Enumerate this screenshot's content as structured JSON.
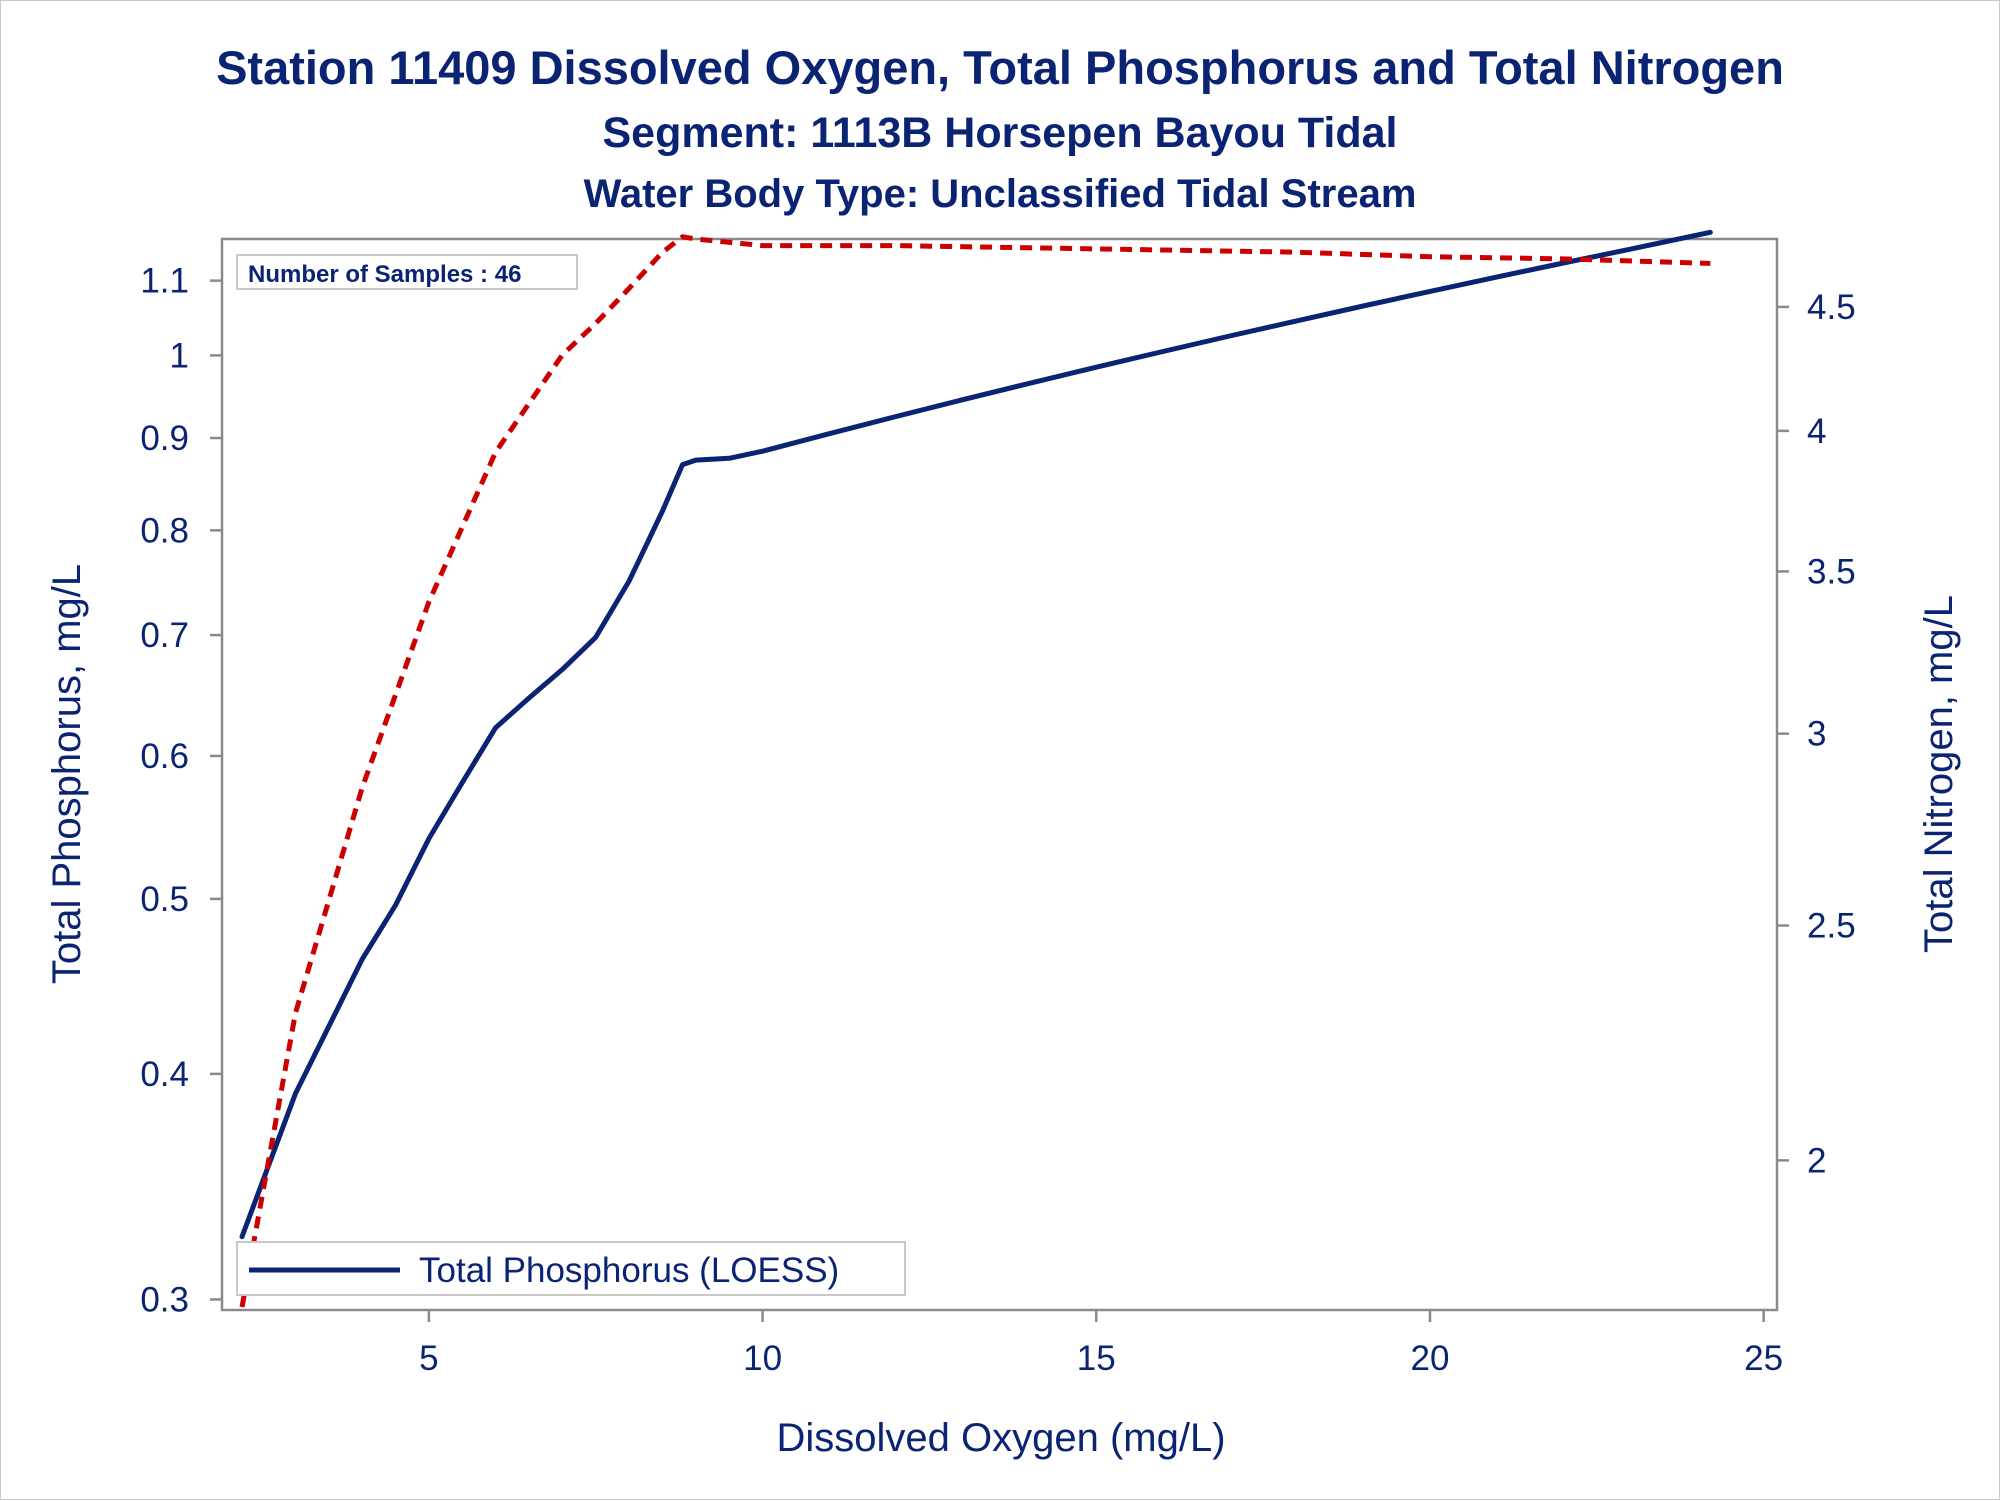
{
  "titles": {
    "line1": "Station 11409  Dissolved Oxygen, Total Phosphorus and Total Nitrogen",
    "line2": "Segment: 1113B  Horsepen Bayou Tidal",
    "line3": "Water Body Type: Unclassified Tidal Stream"
  },
  "inset": {
    "samples_label": "Number of Samples : 46"
  },
  "legend": {
    "label": "Total Phosphorus (LOESS)"
  },
  "colors": {
    "primary": "#0b2373",
    "secondary": "#cc0000",
    "axis": "#8a8a8a"
  },
  "chart_data": {
    "type": "line",
    "title": "Station 11409  Dissolved Oxygen, Total Phosphorus and Total Nitrogen",
    "subtitle": [
      "Segment: 1113B  Horsepen Bayou Tidal",
      "Water Body Type: Unclassified Tidal Stream"
    ],
    "xlabel": "Dissolved Oxygen (mg/L)",
    "ylabel": "Total Phosphorus, mg/L",
    "y2label": "Total Nitrogen, mg/L",
    "xlim": [
      1.9,
      25.2
    ],
    "ylim": [
      0.296,
      1.16
    ],
    "y_scale": "log",
    "y2lim": [
      1.735,
      4.8
    ],
    "y2_scale": "log",
    "x_ticks": [
      5,
      10,
      15,
      20,
      25
    ],
    "y_ticks": [
      0.3,
      0.4,
      0.5,
      0.6,
      0.7,
      0.8,
      0.9,
      1,
      1.1
    ],
    "y2_ticks": [
      2,
      2.5,
      3,
      3.5,
      4,
      4.5
    ],
    "grid": false,
    "legend_position": "bottom-left",
    "series": [
      {
        "name": "Total Phosphorus (LOESS)",
        "axis": "left",
        "style": "solid",
        "color": "#0b2373",
        "x": [
          2.2,
          3.0,
          4.0,
          4.5,
          5.0,
          5.5,
          6.0,
          6.5,
          7.0,
          7.5,
          8.0,
          8.5,
          8.8,
          9.0,
          9.5,
          10.0,
          11.0,
          12.0,
          13.0,
          14.0,
          15.0,
          16.0,
          17.0,
          18.0,
          19.0,
          20.0,
          21.0,
          22.0,
          23.0,
          24.2
        ],
        "y": [
          0.325,
          0.39,
          0.463,
          0.496,
          0.54,
          0.58,
          0.622,
          0.646,
          0.67,
          0.698,
          0.75,
          0.82,
          0.87,
          0.875,
          0.877,
          0.885,
          0.905,
          0.925,
          0.945,
          0.965,
          0.985,
          1.005,
          1.025,
          1.045,
          1.065,
          1.085,
          1.105,
          1.125,
          1.145,
          1.17
        ]
      },
      {
        "name": "",
        "axis": "right",
        "style": "dashed",
        "color": "#cc0000",
        "x": [
          2.2,
          3.0,
          4.0,
          5.0,
          6.0,
          7.0,
          7.5,
          8.0,
          8.5,
          8.8,
          9.0,
          10.0,
          12.0,
          14.0,
          16.0,
          18.0,
          20.0,
          22.0,
          24.2
        ],
        "y": [
          1.74,
          2.3,
          2.85,
          3.4,
          3.92,
          4.3,
          4.43,
          4.58,
          4.74,
          4.81,
          4.8,
          4.77,
          4.77,
          4.76,
          4.75,
          4.74,
          4.72,
          4.71,
          4.69
        ]
      }
    ]
  }
}
